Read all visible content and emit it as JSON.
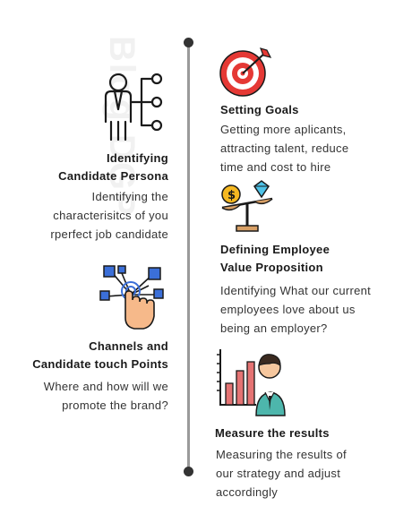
{
  "watermark": "Blog DGP",
  "steps": [
    {
      "title_lines": [
        "Identifying",
        "Candidate Persona"
      ],
      "desc_lines": [
        "Identifying the",
        "characterisitcs of you",
        "rperfect job candidate"
      ],
      "icon": "persona-network-icon"
    },
    {
      "title_lines": [
        "Channels and",
        "Candidate touch Points"
      ],
      "desc_lines": [
        "Where and how will we",
        "promote the brand?"
      ],
      "icon": "touch-network-icon"
    },
    {
      "title_lines": [
        "Setting Goals"
      ],
      "desc_lines": [
        "Getting more aplicants,",
        "attracting talent, reduce",
        "time and cost to hire"
      ],
      "icon": "target-icon"
    },
    {
      "title_lines": [
        "Defining Employee",
        "Value Proposition"
      ],
      "desc_lines": [
        "Identifying What our current",
        "employees love about us",
        "being an employer?"
      ],
      "icon": "scale-icon"
    },
    {
      "title_lines": [
        "Measure the results"
      ],
      "desc_lines": [
        "Measuring the results of",
        "our strategy and adjust",
        "accordingly"
      ],
      "icon": "results-chart-icon"
    }
  ]
}
